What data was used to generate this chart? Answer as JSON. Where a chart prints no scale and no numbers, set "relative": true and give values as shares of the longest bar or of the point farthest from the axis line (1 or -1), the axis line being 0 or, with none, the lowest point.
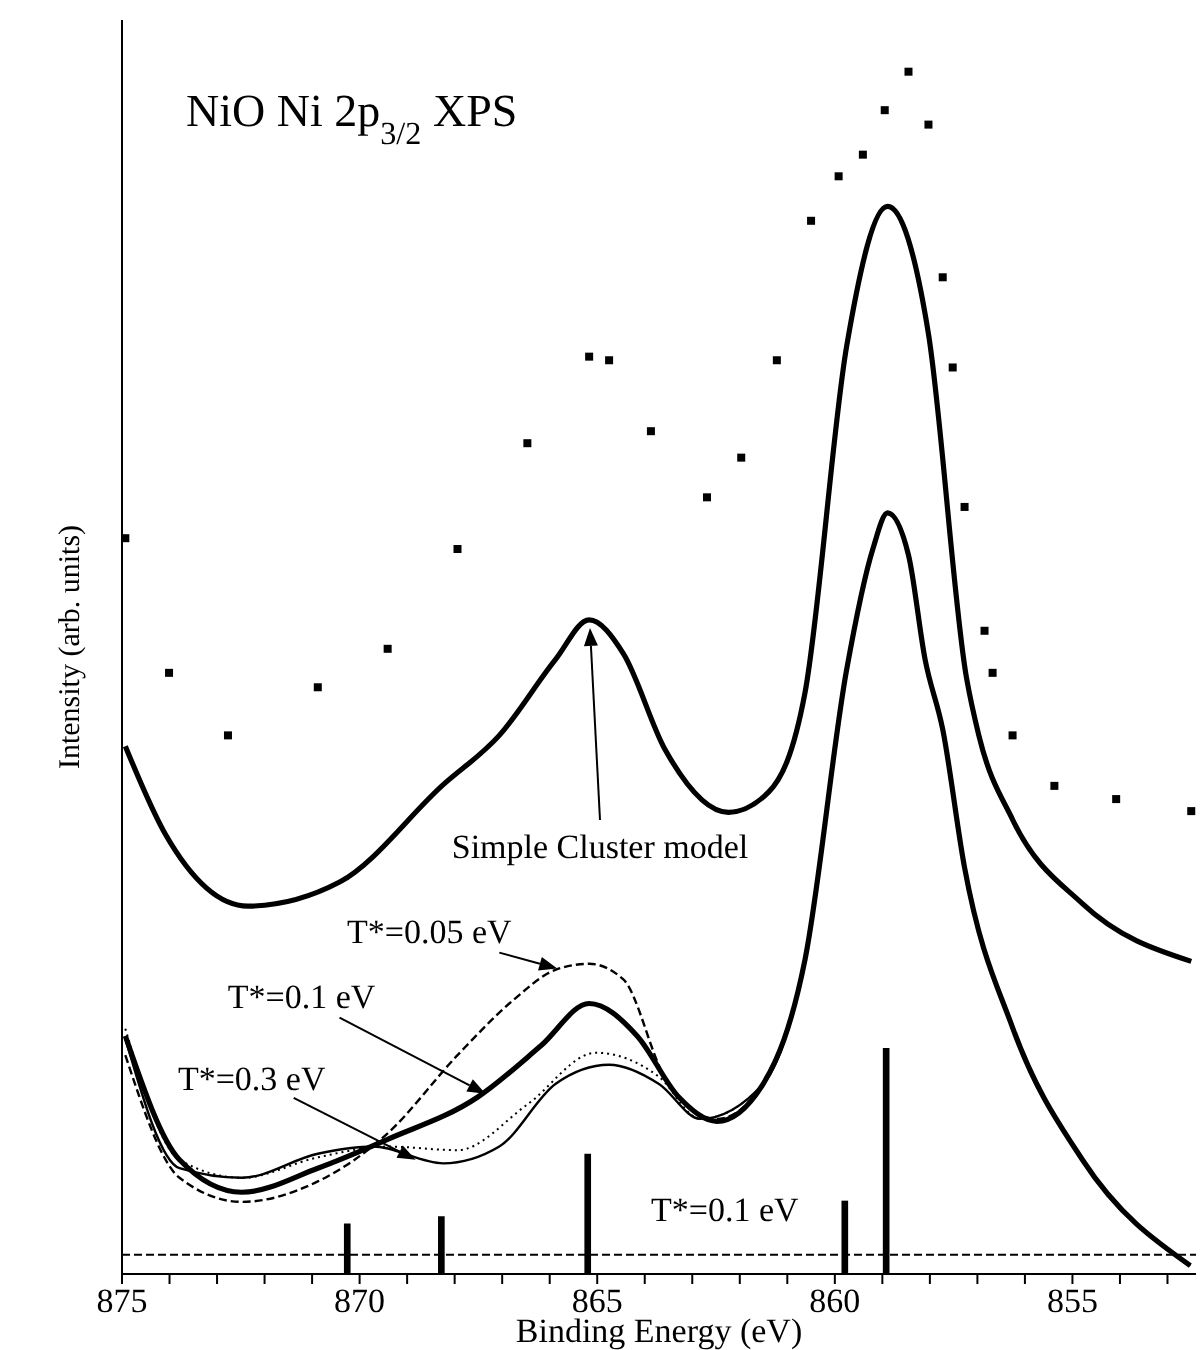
{
  "chart_data": {
    "type": "line",
    "title": "NiO Ni 2p$_{3/2}$ XPS",
    "xlabel": "Binding Energy (eV)",
    "ylabel": "Intensity (arb. units)",
    "relative": true,
    "xlim": [
      875,
      852.4
    ],
    "xticks": [
      875,
      {
        "value": 874,
        "label": null
      },
      {
        "value": 873,
        "label": null
      },
      {
        "value": 872,
        "label": null
      },
      {
        "value": 871,
        "label": null
      },
      870,
      {
        "value": 869,
        "label": null
      },
      {
        "value": 868,
        "label": null
      },
      {
        "value": 867,
        "label": null
      },
      {
        "value": 866,
        "label": null
      },
      865,
      {
        "value": 864,
        "label": null
      },
      {
        "value": 863,
        "label": null
      },
      {
        "value": 862,
        "label": null
      },
      {
        "value": 861,
        "label": null
      },
      860,
      {
        "value": 859,
        "label": null
      },
      {
        "value": 858,
        "label": null
      },
      {
        "value": 857,
        "label": null
      },
      {
        "value": 856,
        "label": null
      },
      855,
      {
        "value": 854,
        "label": null
      },
      {
        "value": 853,
        "label": null
      }
    ],
    "legend": false,
    "grid": false,
    "series": [
      {
        "type": "scatter",
        "marker": "square",
        "color": "#000000",
        "x": [
          874.93,
          874.01,
          872.77,
          870.88,
          869.41,
          867.94,
          866.47,
          865.17,
          864.75,
          863.87,
          862.69,
          861.97,
          861.22,
          860.5,
          859.92,
          859.41,
          858.95,
          858.45,
          858.03,
          857.73,
          857.52,
          857.27,
          856.85,
          856.68,
          856.26,
          855.38,
          854.08,
          852.5
        ],
        "values": [
          0.612,
          0.5,
          0.448,
          0.488,
          0.52,
          0.603,
          0.691,
          0.763,
          0.76,
          0.701,
          0.646,
          0.679,
          0.76,
          0.876,
          0.913,
          0.931,
          0.968,
          1.0,
          0.956,
          0.829,
          0.754,
          0.638,
          0.535,
          0.5,
          0.448,
          0.406,
          0.395,
          0.385
        ]
      },
      {
        "line_style": "solid",
        "color": "#000000",
        "x": [
          874.93,
          874.09,
          872.35,
          870.42,
          868.24,
          867.06,
          865.88,
          865.17,
          864.45,
          863.57,
          862.24,
          861.39,
          860.63,
          859.75,
          858.89,
          858.03,
          857.23,
          856.97,
          856.26,
          854.79,
          852.5
        ],
        "values": [
          0.439,
          0.366,
          0.306,
          0.326,
          0.407,
          0.448,
          0.511,
          0.544,
          0.516,
          0.436,
          0.384,
          0.401,
          0.483,
          0.772,
          0.888,
          0.782,
          0.496,
          0.448,
          0.378,
          0.308,
          0.26
        ]
      },
      {
        "line_style": "dashed",
        "color": "#000000",
        "x": [
          874.93,
          873.79,
          872.48,
          870.88,
          869.41,
          867.94,
          866.76,
          865.88,
          865.17,
          864.45,
          863.57,
          862.48,
          861.51,
          860.63,
          859.75,
          859.2,
          858.89,
          858.45,
          858.1,
          857.73,
          857.27,
          856.26,
          854.79,
          852.52
        ],
        "values": [
          0.182,
          0.08,
          0.06,
          0.077,
          0.117,
          0.182,
          0.228,
          0.253,
          0.258,
          0.245,
          0.163,
          0.129,
          0.158,
          0.261,
          0.503,
          0.603,
          0.633,
          0.598,
          0.511,
          0.453,
          0.338,
          0.205,
          0.095,
          0.007
        ]
      },
      {
        "line_style": "solid",
        "color": "#000000",
        "x": [
          874.93,
          873.79,
          872.48,
          870.88,
          869.41,
          867.52,
          866.18,
          865.17,
          864.16,
          863.28,
          862.48,
          861.51,
          860.63,
          859.75,
          859.2,
          858.89,
          858.45,
          858.1,
          857.73,
          857.27,
          856.26,
          854.79,
          852.52
        ],
        "values": [
          0.198,
          0.095,
          0.068,
          0.088,
          0.112,
          0.147,
          0.19,
          0.225,
          0.198,
          0.147,
          0.127,
          0.158,
          0.261,
          0.503,
          0.603,
          0.633,
          0.598,
          0.511,
          0.453,
          0.338,
          0.205,
          0.095,
          0.007
        ]
      },
      {
        "line_style": "dotted",
        "color": "#000000",
        "x": [
          874.93,
          873.79,
          872.48,
          870.88,
          869.41,
          867.94,
          866.47,
          865.03,
          863.7,
          862.83,
          861.51,
          860.63,
          859.75,
          859.2,
          858.89,
          858.45,
          858.1,
          857.73,
          857.27,
          856.26,
          854.79,
          852.52
        ],
        "values": [
          0.204,
          0.095,
          0.08,
          0.097,
          0.106,
          0.103,
          0.141,
          0.184,
          0.164,
          0.129,
          0.158,
          0.261,
          0.503,
          0.603,
          0.633,
          0.598,
          0.511,
          0.453,
          0.338,
          0.205,
          0.095,
          0.007
        ]
      },
      {
        "line_style": "solid",
        "color": "#000000",
        "x": [
          874.93,
          873.79,
          872.48,
          870.88,
          869.71,
          868.24,
          867.06,
          865.88,
          864.75,
          863.7,
          862.83,
          861.51,
          860.63,
          859.75,
          859.2,
          858.89,
          858.45,
          858.1,
          857.73,
          857.27,
          856.26,
          854.79,
          852.52
        ],
        "values": [
          0.196,
          0.088,
          0.08,
          0.1,
          0.106,
          0.092,
          0.106,
          0.158,
          0.174,
          0.158,
          0.129,
          0.158,
          0.261,
          0.503,
          0.603,
          0.633,
          0.598,
          0.511,
          0.453,
          0.338,
          0.205,
          0.095,
          0.007
        ]
      },
      {
        "type": "bar",
        "name": "T*=0.1 eV",
        "color": "#000000",
        "x": [
          870.26,
          868.28,
          865.2,
          859.79,
          858.92
        ],
        "values": [
          0.042,
          0.048,
          0.1,
          0.061,
          0.188
        ]
      }
    ],
    "ref_lines": [
      {
        "axis": "y",
        "value": 0.016,
        "line_style": "dashed",
        "color": "#000000"
      }
    ],
    "annotations": [
      "Simple Cluster model",
      {
        "text": "T*=0.05 eV",
        "x": 865.84,
        "y": 0.254
      },
      {
        "text": "T*=0.1 eV",
        "x": 867.35,
        "y": 0.15
      },
      {
        "text": "T*=0.3 eV",
        "x": 868.82,
        "y": 0.095
      }
    ]
  }
}
